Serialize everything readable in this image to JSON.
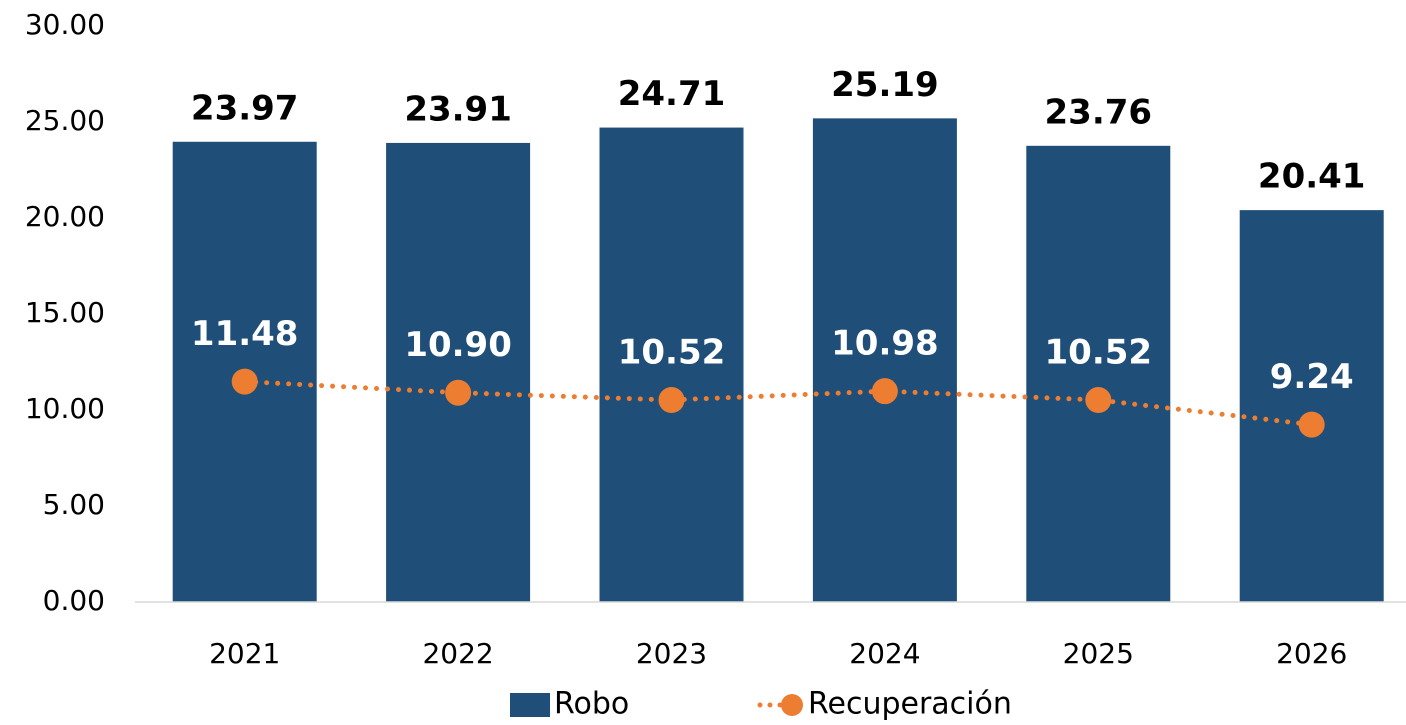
{
  "chart_data": {
    "type": "bar",
    "categories": [
      "2021",
      "2022",
      "2023",
      "2024",
      "2025",
      "2026"
    ],
    "series": [
      {
        "name": "Robo",
        "type": "bar",
        "color": "#1f4e79",
        "values": [
          23.97,
          23.91,
          24.71,
          25.19,
          23.76,
          20.41
        ]
      },
      {
        "name": "Recuperación",
        "type": "line",
        "color": "#ed7d31",
        "values": [
          11.48,
          10.9,
          10.52,
          10.98,
          10.52,
          9.24
        ],
        "value_labels": [
          "11.48",
          "10.90",
          "10.52",
          "10.98",
          "10.52",
          "9.24"
        ]
      }
    ],
    "ylim": [
      0,
      30
    ],
    "yticks": [
      {
        "value": 0,
        "label": "0.00"
      },
      {
        "value": 5,
        "label": "5.00"
      },
      {
        "value": 10,
        "label": "10.00"
      },
      {
        "value": 15,
        "label": "15.00"
      },
      {
        "value": 20,
        "label": "20.00"
      },
      {
        "value": 25,
        "label": "25.00"
      },
      {
        "value": 30,
        "label": "30.00"
      }
    ],
    "legend": "bottom"
  }
}
